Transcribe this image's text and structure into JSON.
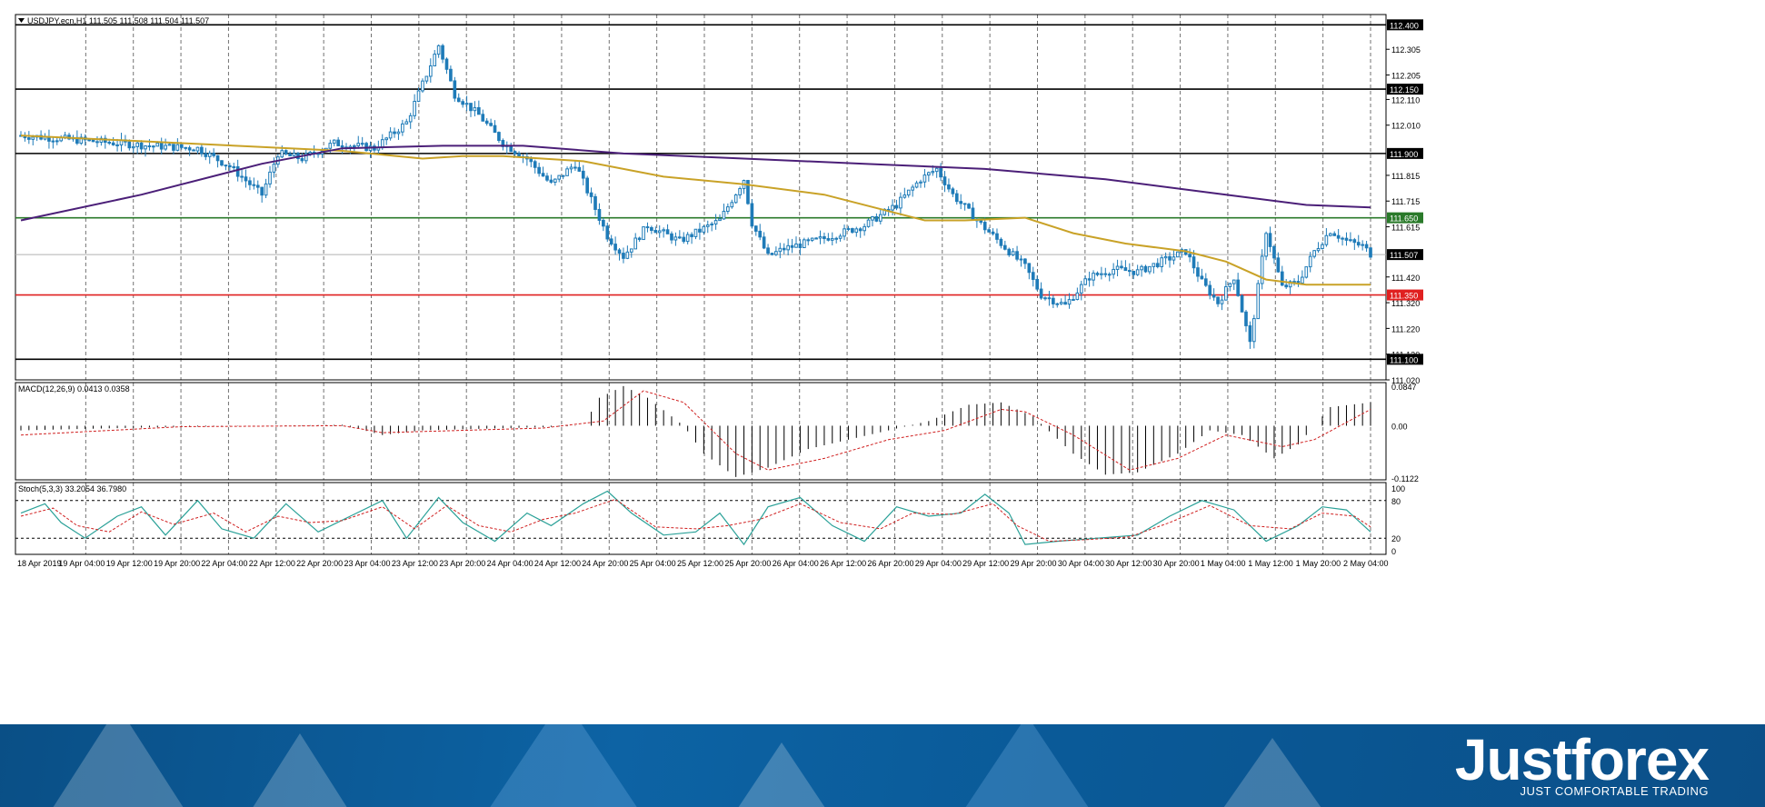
{
  "chart_data": {
    "type": "candlestick",
    "symbol_header": "USDJPY.ecn,H1  111.505 111.508 111.504 111.507",
    "price_axis": {
      "ylim": [
        111.02,
        112.44
      ],
      "ticks": [
        "112.305",
        "112.205",
        "112.110",
        "112.010",
        "111.815",
        "111.715",
        "111.615",
        "111.420",
        "111.320",
        "111.220",
        "111.120",
        "111.020"
      ]
    },
    "horizontal_levels": [
      {
        "value": 112.4,
        "label": "112.400",
        "color": "#000000"
      },
      {
        "value": 112.15,
        "label": "112.150",
        "color": "#000000"
      },
      {
        "value": 111.9,
        "label": "111.900",
        "color": "#000000"
      },
      {
        "value": 111.65,
        "label": "111.650",
        "color": "#2a7a2a"
      },
      {
        "value": 111.35,
        "label": "111.350",
        "color": "#e02020"
      },
      {
        "value": 111.1,
        "label": "111.100",
        "color": "#000000"
      }
    ],
    "current_price": {
      "value": 111.507,
      "label": "111.507"
    },
    "time_labels": [
      "18 Apr 2019",
      "19 Apr 04:00",
      "19 Apr 12:00",
      "19 Apr 20:00",
      "22 Apr 04:00",
      "22 Apr 12:00",
      "22 Apr 20:00",
      "23 Apr 04:00",
      "23 Apr 12:00",
      "23 Apr 20:00",
      "24 Apr 04:00",
      "24 Apr 12:00",
      "24 Apr 20:00",
      "25 Apr 04:00",
      "25 Apr 12:00",
      "25 Apr 20:00",
      "26 Apr 04:00",
      "26 Apr 12:00",
      "26 Apr 20:00",
      "29 Apr 04:00",
      "29 Apr 12:00",
      "29 Apr 20:00",
      "30 Apr 04:00",
      "30 Apr 12:00",
      "30 Apr 20:00",
      "1 May 04:00",
      "1 May 12:00",
      "1 May 20:00",
      "2 May 04:00"
    ],
    "close_path": [
      [
        0,
        111.97
      ],
      [
        8,
        111.96
      ],
      [
        16,
        111.95
      ],
      [
        24,
        111.94
      ],
      [
        32,
        111.93
      ],
      [
        44,
        111.92
      ],
      [
        52,
        111.85
      ],
      [
        60,
        111.74
      ],
      [
        64,
        111.9
      ],
      [
        70,
        111.88
      ],
      [
        78,
        111.94
      ],
      [
        88,
        111.92
      ],
      [
        96,
        112.02
      ],
      [
        104,
        112.32
      ],
      [
        108,
        112.13
      ],
      [
        114,
        112.05
      ],
      [
        120,
        111.94
      ],
      [
        126,
        111.88
      ],
      [
        132,
        111.78
      ],
      [
        138,
        111.86
      ],
      [
        146,
        111.58
      ],
      [
        150,
        111.5
      ],
      [
        156,
        111.62
      ],
      [
        164,
        111.56
      ],
      [
        174,
        111.64
      ],
      [
        180,
        111.8
      ],
      [
        182,
        111.63
      ],
      [
        186,
        111.5
      ],
      [
        190,
        111.53
      ],
      [
        200,
        111.57
      ],
      [
        210,
        111.62
      ],
      [
        218,
        111.7
      ],
      [
        224,
        111.8
      ],
      [
        228,
        111.84
      ],
      [
        232,
        111.74
      ],
      [
        238,
        111.64
      ],
      [
        244,
        111.55
      ],
      [
        250,
        111.46
      ],
      [
        254,
        111.35
      ],
      [
        260,
        111.31
      ],
      [
        266,
        111.42
      ],
      [
        272,
        111.45
      ],
      [
        278,
        111.44
      ],
      [
        284,
        111.48
      ],
      [
        290,
        111.52
      ],
      [
        294,
        111.4
      ],
      [
        298,
        111.32
      ],
      [
        302,
        111.42
      ],
      [
        306,
        111.16
      ],
      [
        310,
        111.6
      ],
      [
        314,
        111.38
      ],
      [
        318,
        111.4
      ],
      [
        322,
        111.52
      ],
      [
        326,
        111.6
      ],
      [
        330,
        111.56
      ],
      [
        334,
        111.54
      ],
      [
        336,
        111.51
      ]
    ],
    "moving_averages": [
      {
        "name": "fast",
        "color": "#c9a227",
        "points": [
          [
            0,
            111.97
          ],
          [
            40,
            111.94
          ],
          [
            80,
            111.91
          ],
          [
            100,
            111.88
          ],
          [
            110,
            111.89
          ],
          [
            120,
            111.89
          ],
          [
            140,
            111.87
          ],
          [
            160,
            111.81
          ],
          [
            180,
            111.78
          ],
          [
            200,
            111.74
          ],
          [
            215,
            111.68
          ],
          [
            225,
            111.64
          ],
          [
            235,
            111.64
          ],
          [
            250,
            111.65
          ],
          [
            262,
            111.59
          ],
          [
            275,
            111.55
          ],
          [
            290,
            111.52
          ],
          [
            300,
            111.48
          ],
          [
            310,
            111.41
          ],
          [
            320,
            111.39
          ],
          [
            336,
            111.39
          ]
        ]
      },
      {
        "name": "slow",
        "color": "#4b1f78",
        "points": [
          [
            0,
            111.64
          ],
          [
            30,
            111.74
          ],
          [
            60,
            111.86
          ],
          [
            80,
            111.92
          ],
          [
            105,
            111.93
          ],
          [
            125,
            111.93
          ],
          [
            150,
            111.9
          ],
          [
            180,
            111.88
          ],
          [
            210,
            111.86
          ],
          [
            240,
            111.84
          ],
          [
            270,
            111.8
          ],
          [
            300,
            111.74
          ],
          [
            320,
            111.7
          ],
          [
            336,
            111.69
          ]
        ]
      }
    ],
    "macd": {
      "label": "MACD(12,26,9) 0.0413 0.0358",
      "ticks": [
        "0.0847",
        "0.00",
        "-0.1122"
      ],
      "ylim": [
        -0.1122,
        0.0847
      ],
      "histogram": [
        [
          0,
          -0.01
        ],
        [
          40,
          -0.002
        ],
        [
          80,
          0.002
        ],
        [
          90,
          -0.02
        ],
        [
          100,
          -0.01
        ],
        [
          130,
          -0.003
        ],
        [
          140,
          0.0
        ],
        [
          144,
          0.06
        ],
        [
          150,
          0.085
        ],
        [
          156,
          0.06
        ],
        [
          165,
          0.0
        ],
        [
          170,
          -0.06
        ],
        [
          178,
          -0.11
        ],
        [
          186,
          -0.09
        ],
        [
          196,
          -0.05
        ],
        [
          206,
          -0.03
        ],
        [
          216,
          -0.01
        ],
        [
          226,
          0.01
        ],
        [
          236,
          0.045
        ],
        [
          244,
          0.05
        ],
        [
          252,
          0.02
        ],
        [
          262,
          -0.06
        ],
        [
          270,
          -0.105
        ],
        [
          278,
          -0.1
        ],
        [
          288,
          -0.06
        ],
        [
          296,
          -0.01
        ],
        [
          304,
          -0.02
        ],
        [
          312,
          -0.07
        ],
        [
          318,
          -0.04
        ],
        [
          326,
          0.04
        ],
        [
          336,
          0.05
        ]
      ],
      "signal": [
        [
          0,
          -0.02
        ],
        [
          40,
          -0.002
        ],
        [
          80,
          0.0
        ],
        [
          90,
          -0.015
        ],
        [
          130,
          -0.005
        ],
        [
          145,
          0.01
        ],
        [
          155,
          0.075
        ],
        [
          165,
          0.05
        ],
        [
          178,
          -0.06
        ],
        [
          186,
          -0.095
        ],
        [
          200,
          -0.07
        ],
        [
          216,
          -0.03
        ],
        [
          230,
          -0.01
        ],
        [
          244,
          0.035
        ],
        [
          250,
          0.03
        ],
        [
          262,
          -0.02
        ],
        [
          276,
          -0.095
        ],
        [
          288,
          -0.07
        ],
        [
          300,
          -0.02
        ],
        [
          314,
          -0.045
        ],
        [
          322,
          -0.03
        ],
        [
          336,
          0.035
        ]
      ]
    },
    "stochastic": {
      "label": "Stoch(5,3,3) 33.2054 36.7980",
      "ticks": [
        "100",
        "80",
        "20",
        "0"
      ],
      "ylim": [
        0,
        100
      ],
      "k": [
        [
          0,
          60
        ],
        [
          6,
          75
        ],
        [
          10,
          45
        ],
        [
          16,
          20
        ],
        [
          24,
          55
        ],
        [
          30,
          70
        ],
        [
          36,
          25
        ],
        [
          44,
          80
        ],
        [
          50,
          35
        ],
        [
          58,
          20
        ],
        [
          66,
          75
        ],
        [
          74,
          30
        ],
        [
          82,
          55
        ],
        [
          90,
          80
        ],
        [
          96,
          20
        ],
        [
          104,
          85
        ],
        [
          110,
          45
        ],
        [
          118,
          15
        ],
        [
          126,
          60
        ],
        [
          132,
          40
        ],
        [
          140,
          75
        ],
        [
          146,
          95
        ],
        [
          152,
          60
        ],
        [
          160,
          25
        ],
        [
          168,
          30
        ],
        [
          174,
          60
        ],
        [
          180,
          10
        ],
        [
          186,
          70
        ],
        [
          194,
          85
        ],
        [
          202,
          40
        ],
        [
          210,
          15
        ],
        [
          218,
          70
        ],
        [
          226,
          55
        ],
        [
          234,
          60
        ],
        [
          240,
          90
        ],
        [
          246,
          60
        ],
        [
          250,
          10
        ],
        [
          258,
          15
        ],
        [
          268,
          20
        ],
        [
          278,
          25
        ],
        [
          286,
          55
        ],
        [
          294,
          80
        ],
        [
          302,
          65
        ],
        [
          310,
          15
        ],
        [
          318,
          40
        ],
        [
          324,
          70
        ],
        [
          330,
          65
        ],
        [
          336,
          30
        ]
      ],
      "d": [
        [
          0,
          55
        ],
        [
          8,
          68
        ],
        [
          14,
          40
        ],
        [
          22,
          30
        ],
        [
          30,
          62
        ],
        [
          38,
          42
        ],
        [
          48,
          60
        ],
        [
          56,
          30
        ],
        [
          64,
          55
        ],
        [
          72,
          45
        ],
        [
          80,
          48
        ],
        [
          90,
          70
        ],
        [
          98,
          35
        ],
        [
          106,
          72
        ],
        [
          114,
          40
        ],
        [
          122,
          30
        ],
        [
          130,
          50
        ],
        [
          138,
          60
        ],
        [
          148,
          82
        ],
        [
          158,
          38
        ],
        [
          168,
          35
        ],
        [
          176,
          40
        ],
        [
          184,
          50
        ],
        [
          194,
          75
        ],
        [
          204,
          45
        ],
        [
          214,
          35
        ],
        [
          222,
          60
        ],
        [
          232,
          58
        ],
        [
          242,
          75
        ],
        [
          248,
          40
        ],
        [
          256,
          15
        ],
        [
          266,
          18
        ],
        [
          276,
          22
        ],
        [
          286,
          45
        ],
        [
          296,
          72
        ],
        [
          306,
          40
        ],
        [
          316,
          35
        ],
        [
          324,
          60
        ],
        [
          332,
          55
        ],
        [
          336,
          38
        ]
      ]
    }
  },
  "banner": {
    "brand": "Justforex",
    "slogan": "JUST COMFORTABLE TRADING"
  },
  "colors": {
    "bull": "#1e7bb8",
    "bear": "#1e7bb8",
    "grid": "#000000",
    "fast_ma": "#c9a227",
    "slow_ma": "#4b1f78",
    "level_green": "#2a7a2a",
    "level_red": "#e02020"
  }
}
